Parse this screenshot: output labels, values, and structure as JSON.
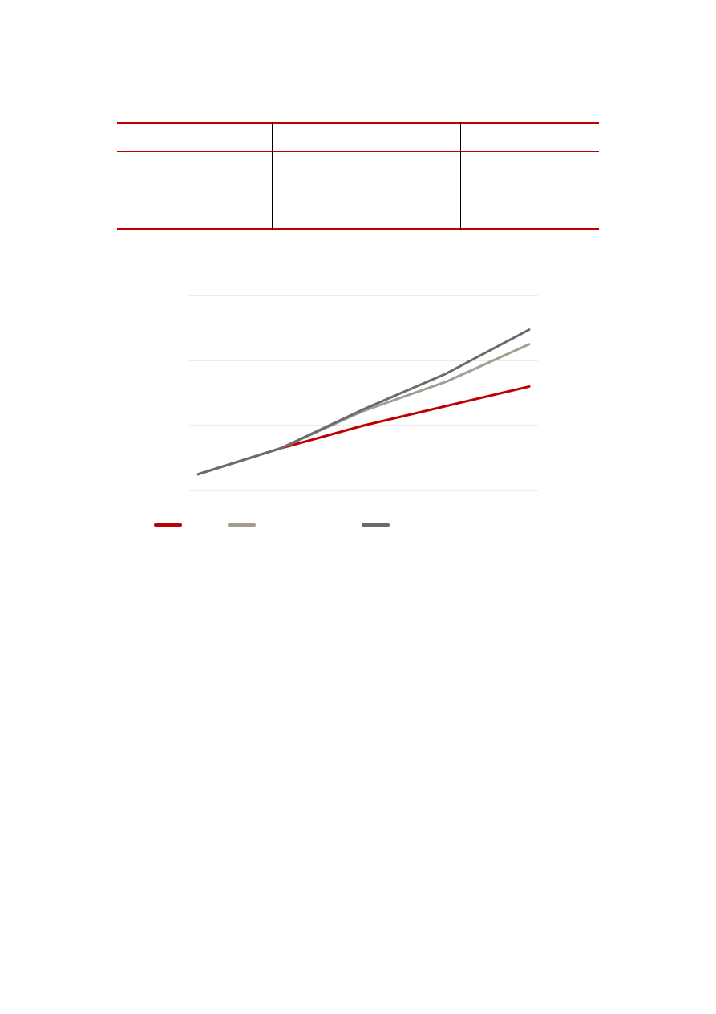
{
  "colors": {
    "accent_red": "#c00000",
    "series_light": "#a59d91",
    "series_dark": "#6b6b6f",
    "grid": "#d9d9d9"
  },
  "table": {
    "columns": 3,
    "body_rows": 1
  },
  "chart_data": {
    "type": "line",
    "title": "",
    "xlabel": "",
    "ylabel": "",
    "x": [
      0,
      1,
      2,
      3,
      4
    ],
    "ylim": [
      0,
      6
    ],
    "grid": true,
    "legend": "bottom",
    "series": [
      {
        "color": "#c00000",
        "values": [
          0.5,
          1.3,
          2.0,
          2.6,
          3.2
        ]
      },
      {
        "color": "#a59d91",
        "values": [
          0.5,
          1.3,
          2.45,
          3.35,
          4.5
        ]
      },
      {
        "color": "#6b6b6f",
        "values": [
          0.5,
          1.3,
          2.5,
          3.6,
          4.95
        ]
      }
    ]
  }
}
